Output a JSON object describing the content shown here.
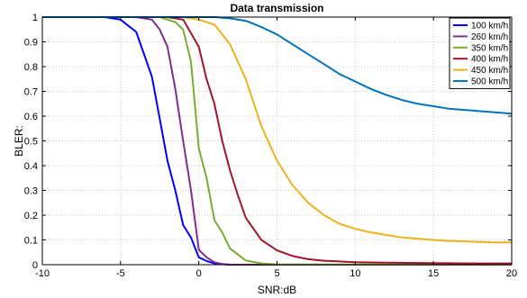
{
  "chart_data": {
    "type": "line",
    "title": "Data transmission",
    "xlabel": "SNR:dB",
    "ylabel": "BLER:",
    "xlim": [
      -10,
      20
    ],
    "ylim": [
      0,
      1
    ],
    "xticks": [
      "-10",
      "-5",
      "0",
      "5",
      "10",
      "15",
      "20"
    ],
    "yticks": [
      "0",
      "0.1",
      "0.2",
      "0.3",
      "0.4",
      "0.5",
      "0.6",
      "0.7",
      "0.8",
      "0.9",
      "1"
    ],
    "grid": true,
    "legend_position": "top-right",
    "series": [
      {
        "name": "100 km/h",
        "color": "#0000ff",
        "x": [
          -10,
          -6,
          -5,
          -4,
          -3,
          -2.5,
          -2,
          -1.5,
          -1,
          -0.5,
          0,
          0.5,
          1,
          1.5,
          2,
          20
        ],
        "y": [
          1,
          1,
          0.99,
          0.94,
          0.76,
          0.59,
          0.42,
          0.3,
          0.16,
          0.11,
          0.03,
          0.015,
          0.005,
          0.002,
          0,
          0
        ]
      },
      {
        "name": "260 km/h",
        "color": "#7e2f8e",
        "x": [
          -10,
          -4,
          -3,
          -2.5,
          -2,
          -1.5,
          -1,
          -0.5,
          0,
          0.5,
          1,
          1.5,
          2,
          20
        ],
        "y": [
          1,
          1,
          0.99,
          0.95,
          0.88,
          0.71,
          0.5,
          0.3,
          0.06,
          0.03,
          0.01,
          0.003,
          0,
          0
        ]
      },
      {
        "name": "350 km/h",
        "color": "#77ac30",
        "x": [
          -10,
          -2.5,
          -2,
          -1.5,
          -1,
          -0.5,
          0,
          0.5,
          1,
          1.5,
          2,
          3,
          4,
          5,
          20
        ],
        "y": [
          1,
          1,
          0.99,
          0.98,
          0.95,
          0.82,
          0.47,
          0.35,
          0.18,
          0.13,
          0.065,
          0.017,
          0.005,
          0.001,
          0
        ]
      },
      {
        "name": "400 km/h",
        "color": "#a2142f",
        "x": [
          -10,
          -2,
          -1,
          0,
          0.5,
          1,
          1.5,
          2,
          2.5,
          3,
          4,
          5,
          6,
          7,
          8,
          9,
          10,
          12,
          14,
          16,
          18,
          20
        ],
        "y": [
          1,
          1,
          0.99,
          0.88,
          0.75,
          0.65,
          0.5,
          0.38,
          0.28,
          0.19,
          0.1,
          0.058,
          0.035,
          0.022,
          0.016,
          0.013,
          0.01,
          0.008,
          0.007,
          0.006,
          0.005,
          0.005
        ]
      },
      {
        "name": "450 km/h",
        "color": "#edb120",
        "x": [
          -10,
          -1,
          0,
          1,
          2,
          3,
          4,
          5,
          6,
          7,
          8,
          9,
          10,
          11,
          12,
          13,
          14,
          15,
          16,
          17,
          18,
          19,
          20
        ],
        "y": [
          1,
          1,
          0.99,
          0.97,
          0.89,
          0.75,
          0.56,
          0.42,
          0.32,
          0.25,
          0.2,
          0.165,
          0.145,
          0.13,
          0.12,
          0.11,
          0.105,
          0.1,
          0.096,
          0.094,
          0.092,
          0.09,
          0.09
        ]
      },
      {
        "name": "500 km/h",
        "color": "#0072bd",
        "x": [
          -10,
          1,
          2,
          3,
          4,
          5,
          6,
          7,
          8,
          9,
          10,
          11,
          12,
          13,
          14,
          15,
          16,
          17,
          18,
          19,
          20
        ],
        "y": [
          1,
          1,
          0.995,
          0.985,
          0.96,
          0.93,
          0.89,
          0.85,
          0.81,
          0.77,
          0.74,
          0.71,
          0.685,
          0.665,
          0.65,
          0.64,
          0.63,
          0.625,
          0.62,
          0.615,
          0.61
        ]
      }
    ]
  }
}
